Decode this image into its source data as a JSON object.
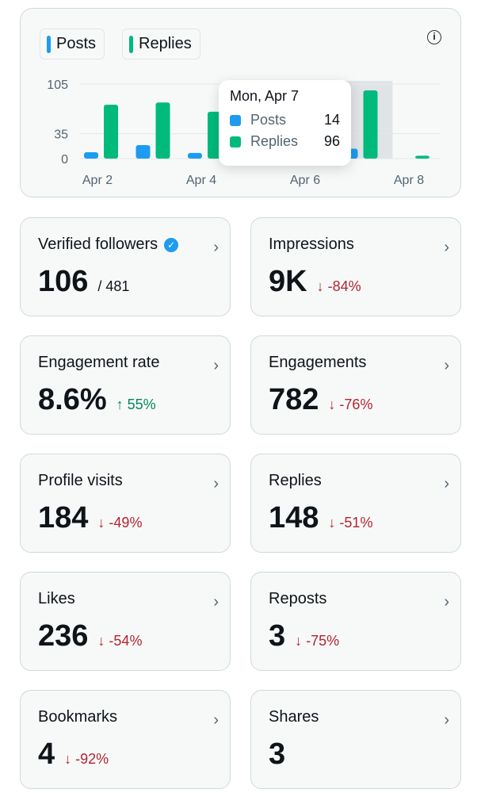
{
  "chart_data": {
    "type": "bar",
    "categories": [
      "Apr 2",
      "Apr 3",
      "Apr 4",
      "Apr 5",
      "Apr 6",
      "Apr 7",
      "Apr 8"
    ],
    "x_tick_labels": [
      "Apr 2",
      "Apr 4",
      "Apr 6",
      "Apr 8"
    ],
    "series": [
      {
        "name": "Posts",
        "color": "#1d9bf0",
        "values": [
          9,
          19,
          8,
          5,
          5,
          14,
          0
        ]
      },
      {
        "name": "Replies",
        "color": "#00ba7c",
        "values": [
          76,
          79,
          66,
          8,
          8,
          96,
          4
        ]
      }
    ],
    "y_ticks": [
      0,
      35,
      105
    ],
    "ylim": [
      0,
      105
    ],
    "grid": true,
    "legend": "top-left",
    "highlighted": "Apr 7",
    "tooltip": {
      "title": "Mon, Apr 7",
      "rows": [
        {
          "label": "Posts",
          "value": "14"
        },
        {
          "label": "Replies",
          "value": "96"
        }
      ]
    }
  },
  "cards": [
    {
      "label": "Verified followers",
      "value": "106",
      "sub": "/ 481",
      "verified": true
    },
    {
      "label": "Impressions",
      "value": "9K",
      "change": "-84%",
      "dir": "down"
    },
    {
      "label": "Engagement rate",
      "value": "8.6%",
      "change": "55%",
      "dir": "up"
    },
    {
      "label": "Engagements",
      "value": "782",
      "change": "-76%",
      "dir": "down"
    },
    {
      "label": "Profile visits",
      "value": "184",
      "change": "-49%",
      "dir": "down"
    },
    {
      "label": "Replies",
      "value": "148",
      "change": "-51%",
      "dir": "down"
    },
    {
      "label": "Likes",
      "value": "236",
      "change": "-54%",
      "dir": "down"
    },
    {
      "label": "Reposts",
      "value": "3",
      "change": "-75%",
      "dir": "down"
    },
    {
      "label": "Bookmarks",
      "value": "4",
      "change": "-92%",
      "dir": "down"
    },
    {
      "label": "Shares",
      "value": "3"
    }
  ]
}
